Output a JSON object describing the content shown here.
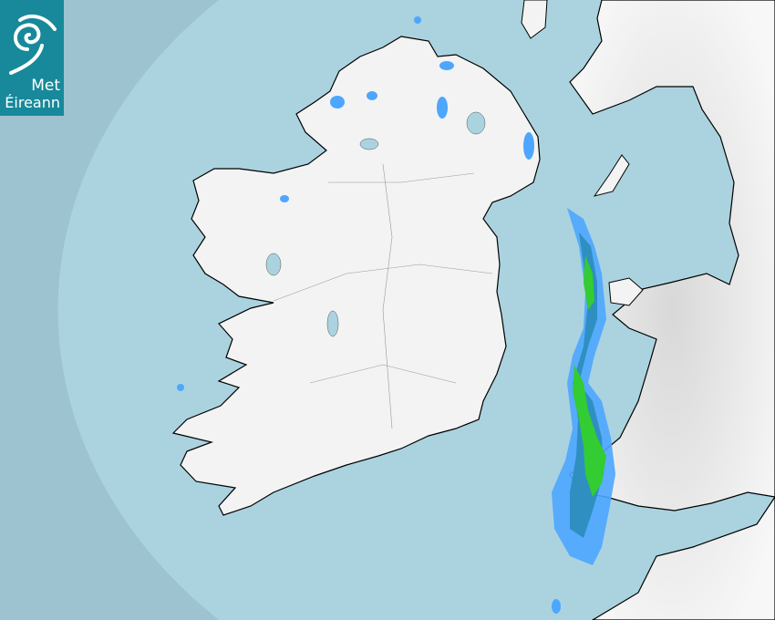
{
  "logo": {
    "line1": "Met",
    "line2": "Éireann",
    "icon": "met-eireann-spiral-logo",
    "color": "#17899a"
  },
  "map": {
    "type": "rainfall-radar",
    "colors": {
      "outside_radar": "#9cc3cf",
      "sea": "#aad3df",
      "land": "#f2f2f2",
      "rain_light": "#4da6ff",
      "rain_moderate": "#3399cc",
      "rain_heavy": "#33cc33"
    }
  }
}
